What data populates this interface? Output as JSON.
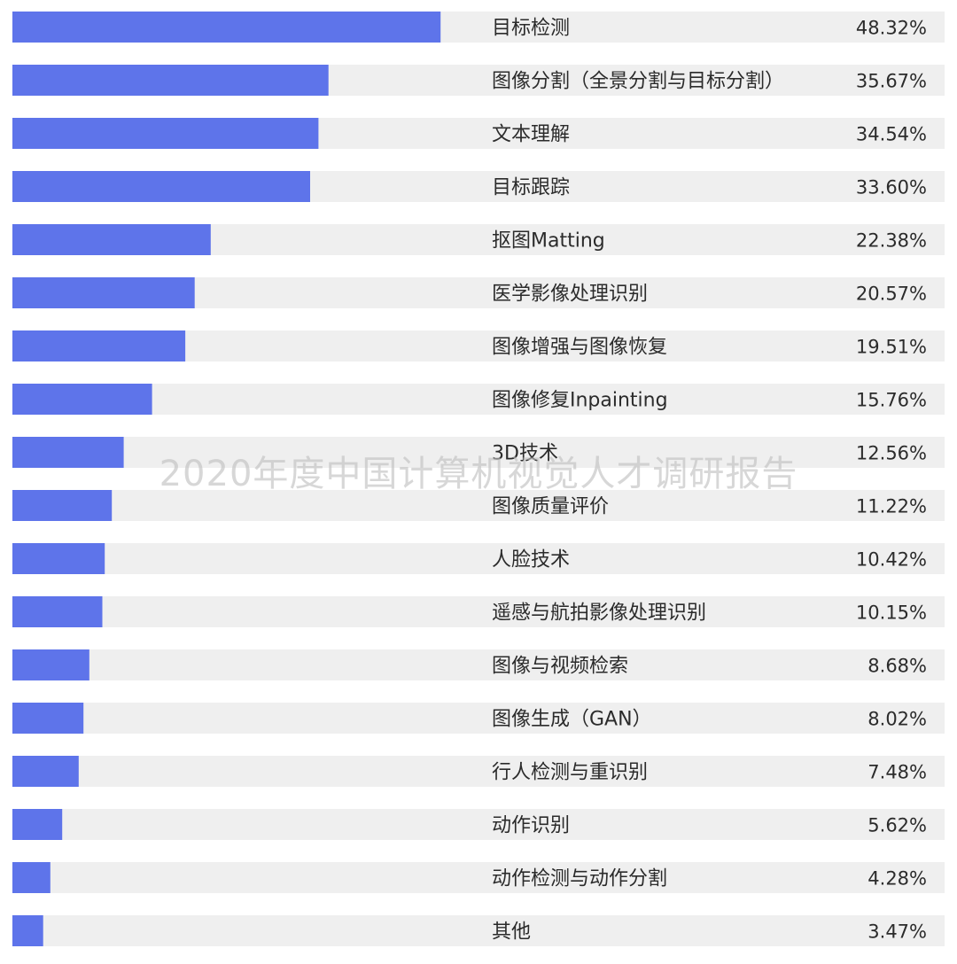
{
  "watermark": "2020年度中国计算机视觉人才调研报告",
  "colors": {
    "bar": "#5e74ea",
    "track": "#efefef",
    "text": "#2b2b2b",
    "watermark": "#bebebe"
  },
  "chart_data": {
    "type": "bar",
    "orientation": "horizontal",
    "title": "",
    "xlabel": "",
    "ylabel": "",
    "xlim": [
      0,
      100
    ],
    "unit": "%",
    "grid": false,
    "categories": [
      "目标检测",
      "图像分割（全景分割与目标分割）",
      "文本理解",
      "目标跟踪",
      "抠图Matting",
      "医学影像处理识别",
      "图像增强与图像恢复",
      "图像修复Inpainting",
      "3D技术",
      "图像质量评价",
      "人脸技术",
      "遥感与航拍影像处理识别",
      "图像与视频检索",
      "图像生成（GAN）",
      "行人检测与重识别",
      "动作识别",
      "动作检测与动作分割",
      "其他"
    ],
    "values": [
      48.32,
      35.67,
      34.54,
      33.6,
      22.38,
      20.57,
      19.51,
      15.76,
      12.56,
      11.22,
      10.42,
      10.15,
      8.68,
      8.02,
      7.48,
      5.62,
      4.28,
      3.47
    ],
    "value_labels": [
      "48.32%",
      "35.67%",
      "34.54%",
      "33.60%",
      "22.38%",
      "20.57%",
      "19.51%",
      "15.76%",
      "12.56%",
      "11.22%",
      "10.42%",
      "10.15%",
      "8.68%",
      "8.02%",
      "7.48%",
      "5.62%",
      "4.28%",
      "3.47%"
    ]
  }
}
